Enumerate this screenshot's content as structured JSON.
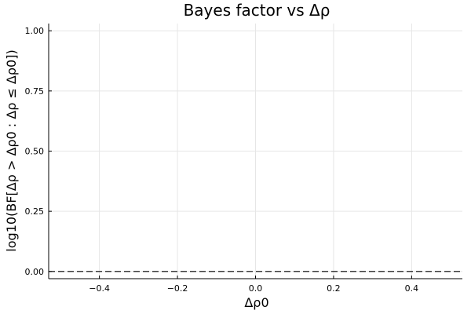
{
  "chart_data": {
    "type": "line",
    "title": "Bayes factor vs Δρ",
    "xlabel": "Δρ0",
    "ylabel": "log10(BF[Δρ > Δρ0 : Δρ ≤ Δρ0])",
    "xlim": [
      -0.53,
      0.53
    ],
    "ylim": [
      -0.03,
      1.03
    ],
    "xticks": [
      -0.4,
      -0.2,
      0.0,
      0.2,
      0.4
    ],
    "xtick_labels": [
      "−0.4",
      "−0.2",
      "0.0",
      "0.2",
      "0.4"
    ],
    "yticks": [
      0.0,
      0.25,
      0.5,
      0.75,
      1.0
    ],
    "ytick_labels": [
      "0.00",
      "0.25",
      "0.50",
      "0.75",
      "1.00"
    ],
    "grid": true,
    "legend": "none",
    "reference_line": {
      "y": 0,
      "style": "dashed",
      "color": "#000000"
    },
    "series": []
  }
}
